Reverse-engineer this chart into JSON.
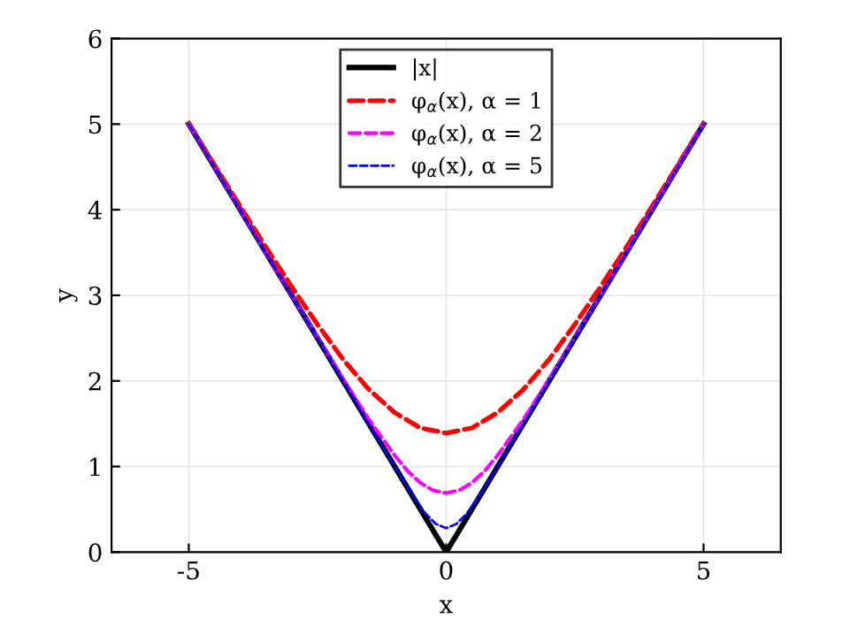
{
  "chart_data": {
    "type": "line",
    "xlabel": "x",
    "ylabel": "y",
    "xlim": [
      -6.5,
      6.5
    ],
    "ylim": [
      0,
      6
    ],
    "xticks": [
      {
        "value": -5,
        "label": "-5"
      },
      0,
      5
    ],
    "yticks": [
      0,
      1,
      2,
      3,
      4,
      5,
      6
    ],
    "grid": true,
    "legend": "top",
    "series": [
      {
        "name": "|x|",
        "color": "#000000",
        "line_style": "solid",
        "x": [
          -5,
          0,
          5
        ],
        "values": [
          5,
          0,
          5
        ]
      },
      {
        "name": "φ$_{α}$(x), α = 1",
        "color": "#ff0000",
        "line_style": "dashed",
        "x": [
          -5,
          -4.5,
          -4,
          -3.5,
          -3,
          -2.5,
          -2,
          -1.5,
          -1,
          -0.5,
          0,
          0.5,
          1,
          1.5,
          2,
          2.5,
          3,
          3.5,
          4,
          4.5,
          5
        ],
        "values": [
          5.01,
          4.52,
          4.04,
          3.56,
          3.1,
          2.66,
          2.25,
          1.9,
          1.63,
          1.45,
          1.39,
          1.45,
          1.63,
          1.9,
          2.25,
          2.66,
          3.1,
          3.56,
          4.04,
          4.52,
          5.01
        ]
      },
      {
        "name": "φ$_{α}$(x), α = 2",
        "color": "#ff00ff",
        "line_style": "dashed",
        "x": [
          -5,
          -3,
          -2.5,
          -2,
          -1.5,
          -1,
          -0.75,
          -0.5,
          -0.25,
          0,
          0.25,
          0.5,
          0.75,
          1,
          1.5,
          2,
          2.5,
          3,
          5
        ],
        "values": [
          5,
          3,
          2.51,
          2.02,
          1.55,
          1.13,
          0.95,
          0.81,
          0.72,
          0.69,
          0.72,
          0.81,
          0.95,
          1.13,
          1.55,
          2.02,
          2.51,
          3,
          5
        ]
      },
      {
        "name": "φ$_{α}$(x), α = 5",
        "color": "#0000ff",
        "line_style": "dashed",
        "x": [
          -5,
          -1,
          -0.8,
          -0.6,
          -0.4,
          -0.2,
          0,
          0.2,
          0.4,
          0.6,
          0.8,
          1,
          5
        ],
        "values": [
          5,
          1,
          0.81,
          0.62,
          0.45,
          0.33,
          0.28,
          0.33,
          0.45,
          0.62,
          0.81,
          1,
          5
        ]
      }
    ]
  }
}
